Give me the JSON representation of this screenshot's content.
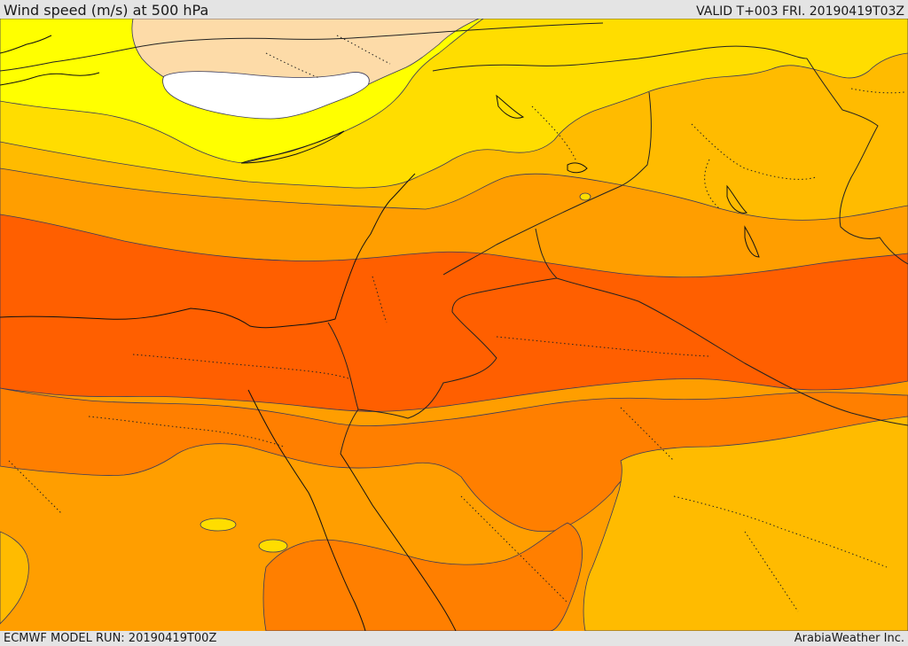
{
  "header": {
    "title": "Wind speed (m/s) at 500 hPa",
    "valid_time": "VALID T+003 FRI. 20190419T03Z"
  },
  "footer": {
    "model_run": "ECMWF MODEL RUN: 20190419T00Z",
    "credit": "ArabiaWeather Inc."
  },
  "map": {
    "field": "wind speed",
    "level": "500 hPa",
    "colors": {
      "calmest": "#ffffff",
      "pale": "#fddba8",
      "yellow": "#ffff00",
      "gold": "#ffdd00",
      "amber": "#ffbb00",
      "orange_light": "#ff9e00",
      "orange": "#ff7f00",
      "orange_dark": "#ff5f00",
      "contour": "#3a3a5a",
      "coastline": "#111111",
      "border": "#222222"
    }
  }
}
